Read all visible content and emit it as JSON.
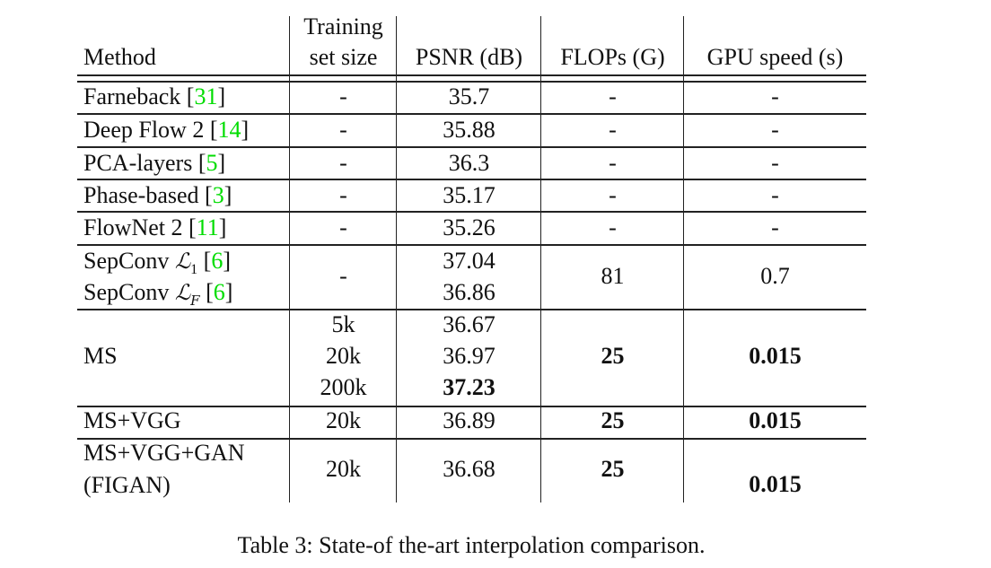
{
  "table": {
    "headers": {
      "method": "Method",
      "training_line1": "Training",
      "training_line2": "set size",
      "psnr": "PSNR (dB)",
      "flops": "FLOPs (G)",
      "gpu": "GPU speed (s)"
    },
    "rows": [
      {
        "method": "Farneback",
        "cite": "31",
        "training": "-",
        "psnr": "35.7",
        "flops": "-",
        "gpu": "-"
      },
      {
        "method": "Deep Flow 2",
        "cite": "14",
        "training": "-",
        "psnr": "35.88",
        "flops": "-",
        "gpu": "-"
      },
      {
        "method": "PCA-layers",
        "cite": "5",
        "training": "-",
        "psnr": "36.3",
        "flops": "-",
        "gpu": "-"
      },
      {
        "method": "Phase-based",
        "cite": "3",
        "training": "-",
        "psnr": "35.17",
        "flops": "-",
        "gpu": "-"
      },
      {
        "method": "FlowNet 2",
        "cite": "11",
        "training": "-",
        "psnr": "35.26",
        "flops": "-",
        "gpu": "-"
      },
      {
        "method": "SepConv",
        "math": "ℒ",
        "sub": "1",
        "cite": "6",
        "psnr": "37.04"
      },
      {
        "method": "SepConv",
        "math": "ℒ",
        "sub": "F",
        "cite": "6",
        "psnr": "36.86"
      }
    ],
    "sepconv_group": {
      "training": "-",
      "flops": "81",
      "gpu": "0.7"
    },
    "ms_group": {
      "method": "MS",
      "training": [
        "5k",
        "20k",
        "200k"
      ],
      "psnr": [
        "36.67",
        "36.97",
        "37.23"
      ],
      "flops": "25",
      "gpu": "0.015"
    },
    "ms_vgg": {
      "method": "MS+VGG",
      "training": "20k",
      "psnr": "36.89",
      "flops": "25",
      "gpu": "0.015"
    },
    "figan": {
      "method_line1": "MS+VGG+GAN",
      "method_line2": "(FIGAN)",
      "training": "20k",
      "psnr": "36.68",
      "flops": "25",
      "gpu": "0.015"
    },
    "bold_cells": [
      "ms_group.psnr.2",
      "ms_group.flops",
      "ms_group.gpu",
      "ms_vgg.flops",
      "ms_vgg.gpu",
      "figan.flops",
      "figan.gpu"
    ]
  },
  "caption": "Table 3: State-of the-art interpolation comparison.",
  "colors": {
    "citation": "#00dd00",
    "text": "#111111"
  }
}
